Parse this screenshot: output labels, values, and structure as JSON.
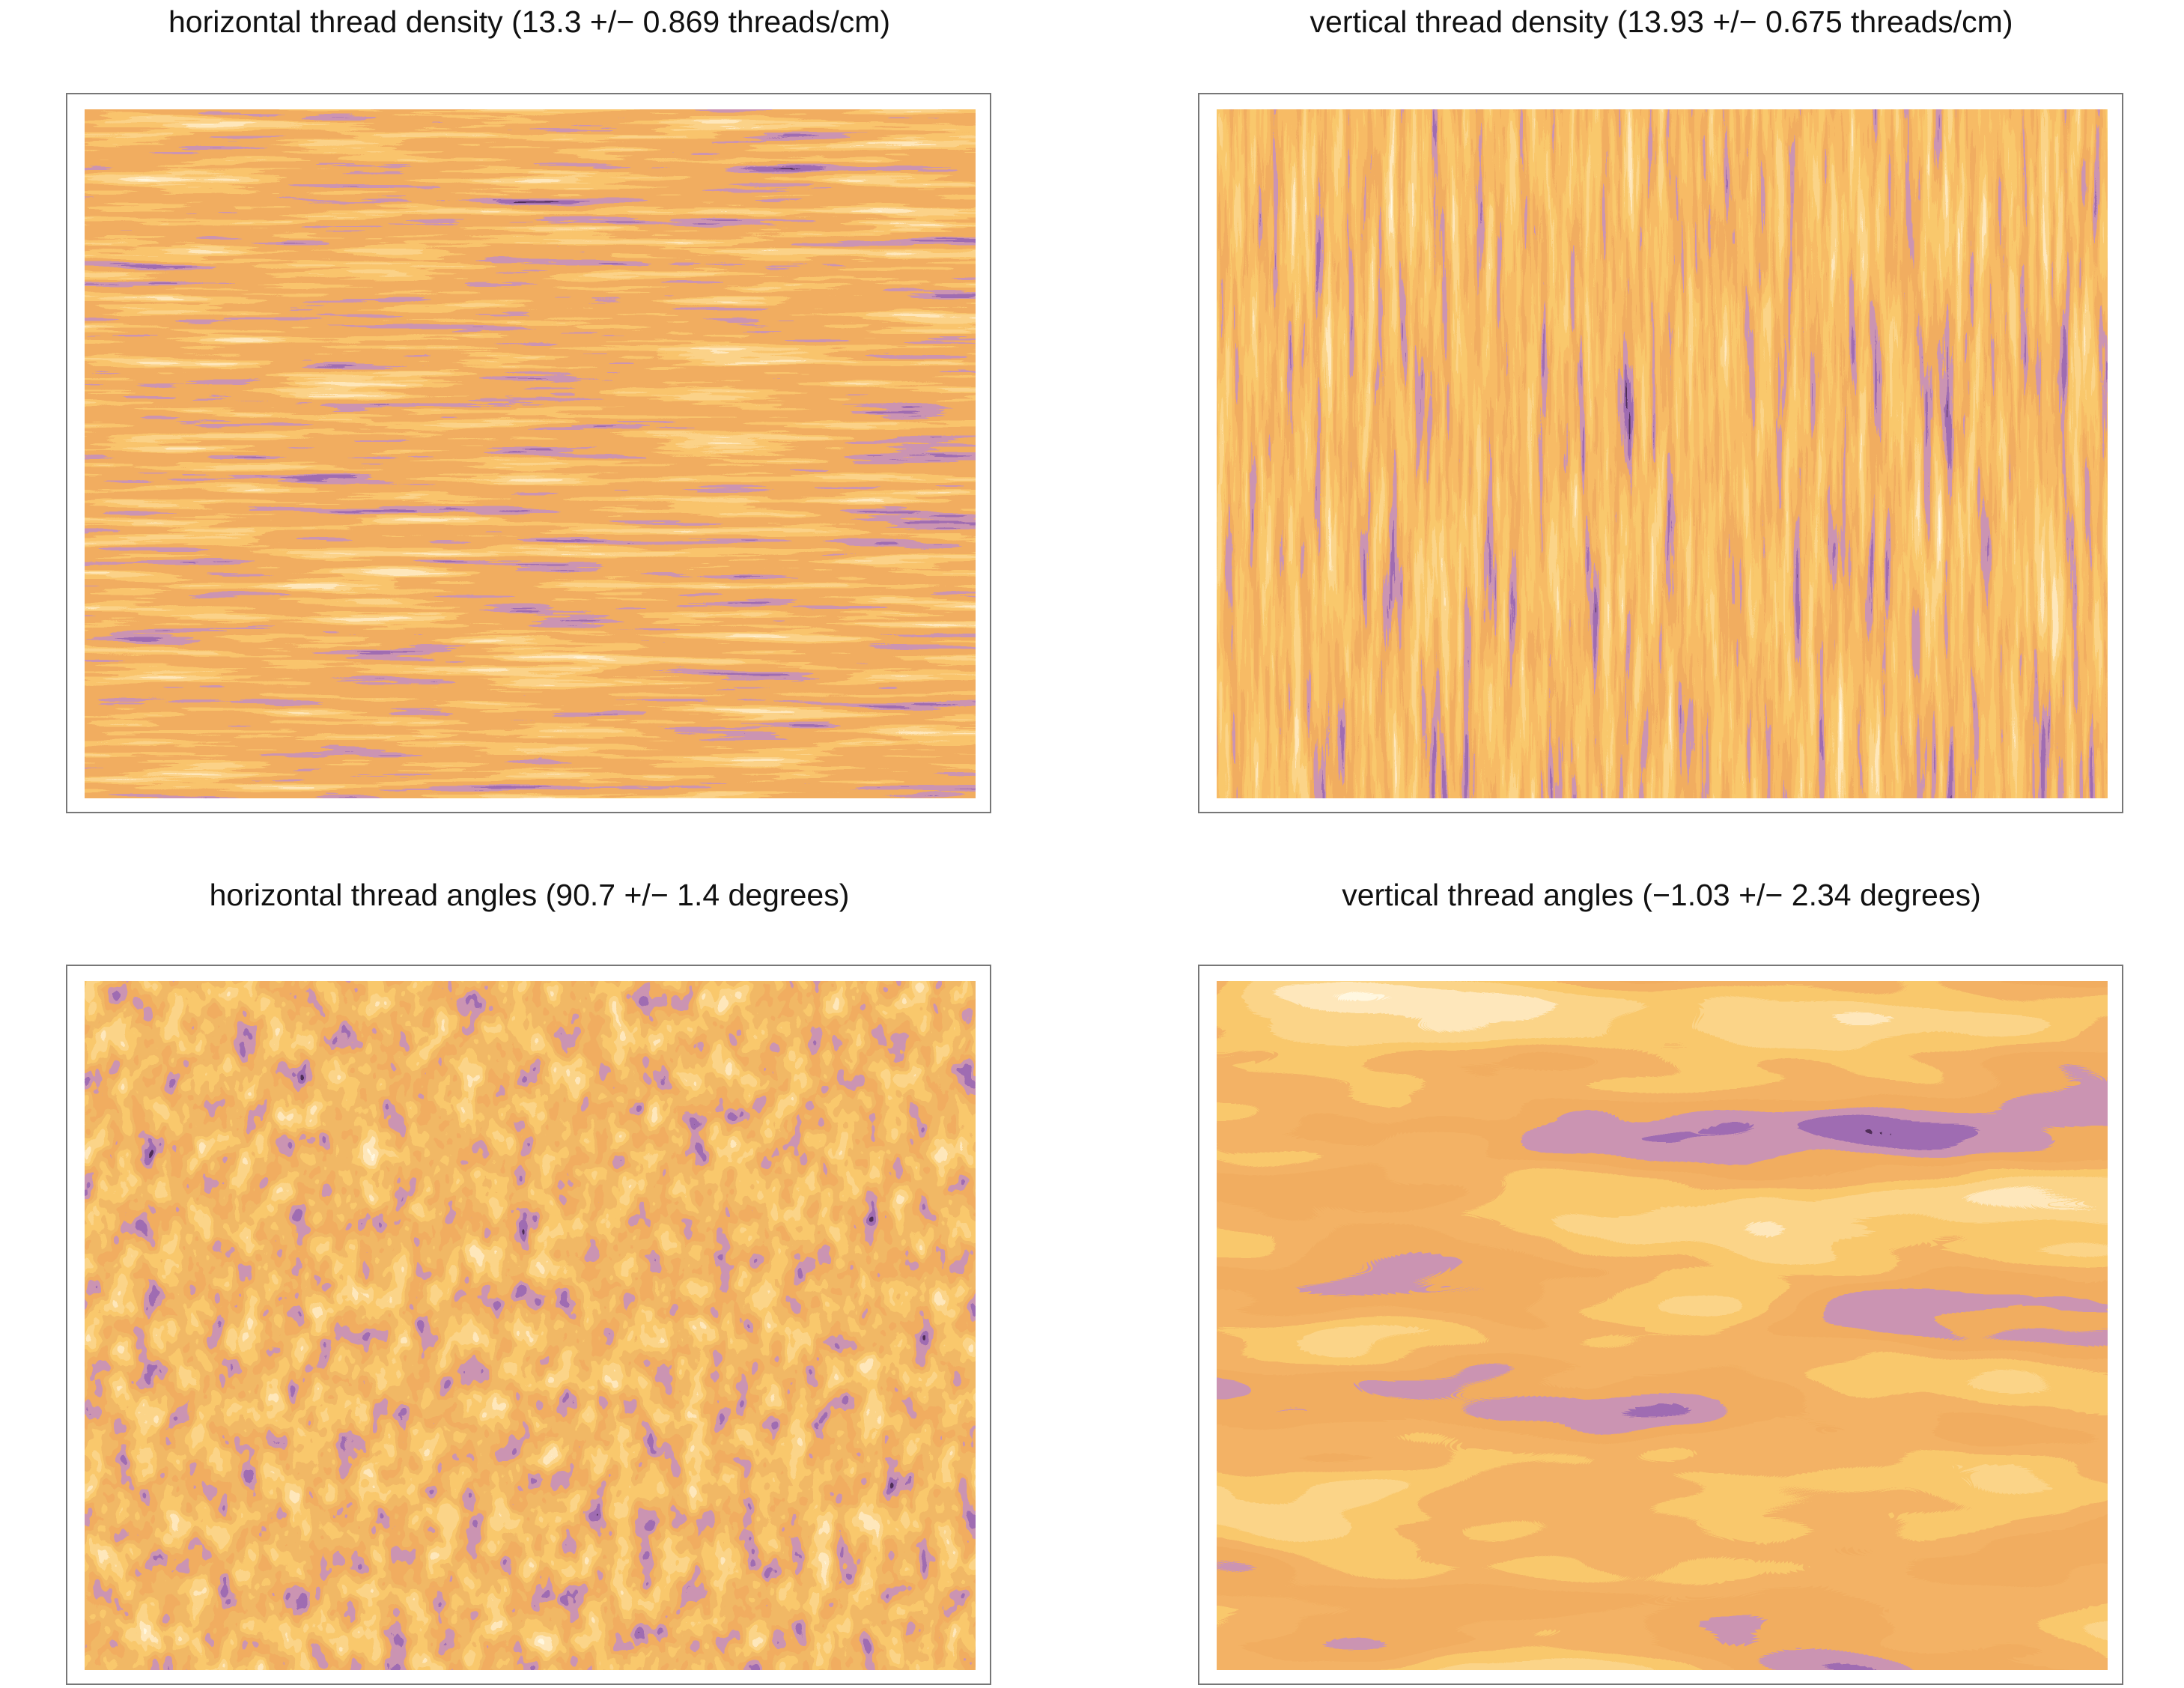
{
  "panels": [
    {
      "title": "horizontal thread density (13.3 +/− 0.869 threads/cm)"
    },
    {
      "title": "vertical thread density (13.93 +/− 0.675 threads/cm)"
    },
    {
      "title": "horizontal thread angles (90.7 +/− 1.4 degrees)"
    },
    {
      "title": "vertical thread angles (−1.03 +/− 2.34 degrees)"
    }
  ]
}
